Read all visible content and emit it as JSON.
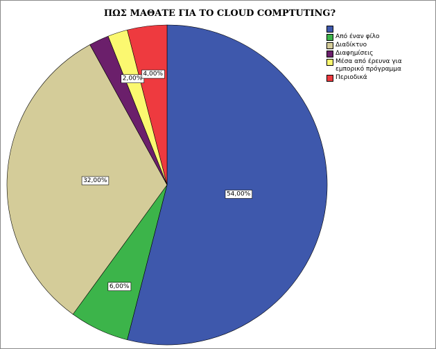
{
  "chart_data": {
    "type": "pie",
    "title": "ΠΩΣ ΜΑΘΑΤΕ ΓΙΑ ΤΟ CLOUD COMPTUTING?",
    "categories": [
      null,
      "Από έναν φίλο",
      "Διαδίκτυο",
      "Διαφημίσεις",
      "Μέσα από έρευνα για εμπορικό πρόγραμμα",
      "Περιοδικά"
    ],
    "values": [
      54,
      6,
      32,
      2,
      2,
      4
    ],
    "value_labels": [
      "54,00%",
      "6,00%",
      "32,00%",
      null,
      "2,00%",
      "4,00%"
    ],
    "colors": [
      "#3e58ac",
      "#3cb44a",
      "#d4cc99",
      "#6b1f6b",
      "#fbf870",
      "#ee3a3f"
    ],
    "legend": "top-right"
  }
}
